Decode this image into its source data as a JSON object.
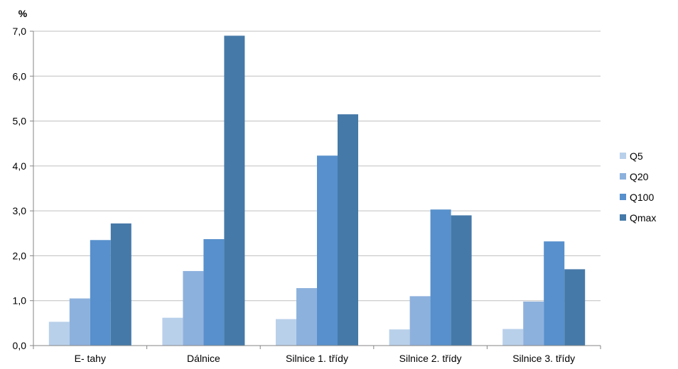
{
  "chart_data": {
    "type": "bar",
    "y_unit_label": "%",
    "categories": [
      "E- tahy",
      "Dálnice",
      "Silnice 1. třídy",
      "Silnice 2. třídy",
      "Silnice 3. třídy"
    ],
    "series": [
      {
        "name": "Q5",
        "color": "#b9d0ea",
        "values": [
          0.53,
          0.62,
          0.59,
          0.36,
          0.37
        ]
      },
      {
        "name": "Q20",
        "color": "#8db1dd",
        "values": [
          1.05,
          1.66,
          1.28,
          1.1,
          0.98
        ]
      },
      {
        "name": "Q100",
        "color": "#5790cc",
        "values": [
          2.35,
          2.37,
          4.23,
          3.03,
          2.32
        ]
      },
      {
        "name": "Qmax",
        "color": "#4579a8",
        "values": [
          2.72,
          6.9,
          5.15,
          2.9,
          1.7
        ]
      }
    ],
    "ylim": [
      0,
      7
    ],
    "y_ticks": [
      "0,0",
      "1,0",
      "2,0",
      "3,0",
      "4,0",
      "5,0",
      "6,0",
      "7,0"
    ],
    "y_tick_values": [
      0,
      1,
      2,
      3,
      4,
      5,
      6,
      7
    ],
    "grid": true,
    "legend_position": "right"
  }
}
